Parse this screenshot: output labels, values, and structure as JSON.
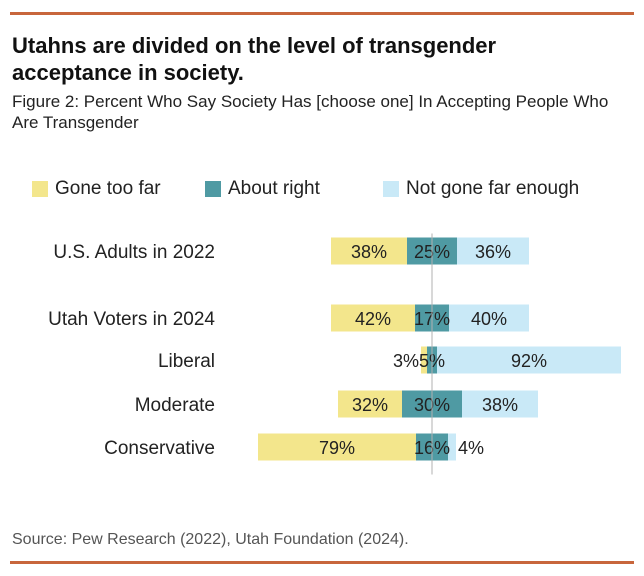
{
  "header": {
    "title": "Utahns are divided on the level of transgender acceptance in society.",
    "subtitle": "Figure 2: Percent Who Say Society Has [choose one] In Accepting People Who Are Transgender"
  },
  "footer": {
    "source": "Source: Pew Research (2022), Utah Foundation (2024)."
  },
  "colors": {
    "accent_rule": "#c8663c",
    "gone_too_far": "#f3e68c",
    "about_right": "#4f9aa3",
    "not_far_enough": "#c9e9f7",
    "center_line": "#b0b0b0"
  },
  "chart_data": {
    "type": "bar",
    "orientation": "horizontal",
    "stacked": "diverging",
    "title": "",
    "categories": [
      "U.S. Adults in 2022",
      "Utah Voters in 2024",
      "Liberal",
      "Moderate",
      "Conservative"
    ],
    "series": [
      {
        "name": "Gone too far",
        "values": [
          38,
          42,
          3,
          32,
          79
        ],
        "labels": [
          "38%",
          "42%",
          "3%",
          "32%",
          "79%"
        ]
      },
      {
        "name": "About right",
        "values": [
          25,
          17,
          5,
          30,
          16
        ],
        "labels": [
          "25%",
          "17%",
          "5%",
          "30%",
          "16%"
        ]
      },
      {
        "name": "Not gone far enough",
        "values": [
          36,
          40,
          92,
          38,
          4
        ],
        "labels": [
          "36%",
          "40%",
          "92%",
          "38%",
          "4%"
        ]
      }
    ],
    "legend_position": "top",
    "unit": "%",
    "grid": false
  }
}
